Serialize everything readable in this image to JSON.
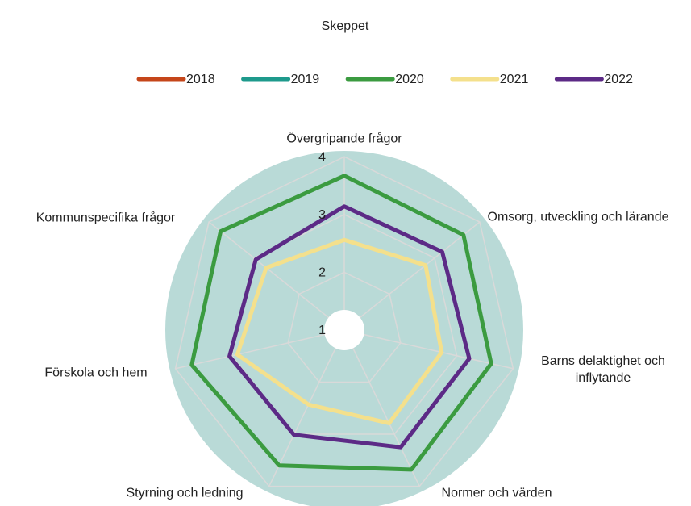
{
  "chart_data": {
    "type": "radar",
    "title": "Skeppet",
    "categories": [
      "Övergripande frågor",
      "Omsorg, utveckling och lärande",
      "Barns delaktighet och inflytande",
      "Normer och värden",
      "Styrning och ledning",
      "Förskola och hem",
      "Kommunspecifika frågor"
    ],
    "series": [
      {
        "name": "2018",
        "color": "#c5461a",
        "values": [
          null,
          null,
          null,
          null,
          null,
          null,
          null
        ]
      },
      {
        "name": "2019",
        "color": "#1e9a8c",
        "values": [
          null,
          null,
          null,
          null,
          null,
          null,
          null
        ]
      },
      {
        "name": "2020",
        "color": "#3b9b40",
        "values": [
          3.67,
          3.64,
          3.61,
          3.68,
          3.6,
          3.71,
          3.74
        ]
      },
      {
        "name": "2021",
        "color": "#f4e08c",
        "values": [
          2.56,
          2.8,
          2.73,
          2.79,
          2.43,
          2.9,
          2.73
        ]
      },
      {
        "name": "2022",
        "color": "#5c2a86",
        "values": [
          3.14,
          3.17,
          3.22,
          3.25,
          3.01,
          3.04,
          2.96
        ]
      }
    ],
    "rlim": [
      1,
      4.1
    ],
    "rticks": [
      1,
      2,
      3,
      4
    ],
    "grid": true,
    "legend": "top"
  }
}
